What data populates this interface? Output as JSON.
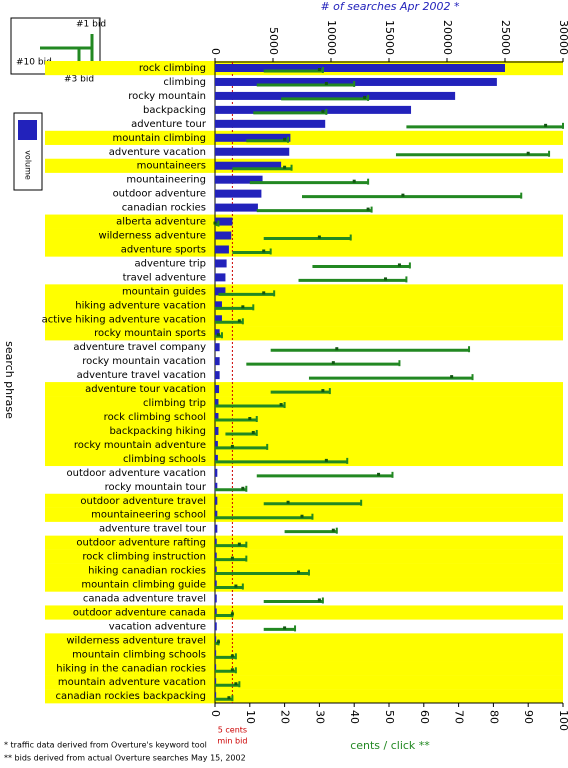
{
  "chart_data": {
    "type": "bar",
    "x_title": "# of searches  Apr 2002 *",
    "x2_title": "cents / click **",
    "y_title": "search phrase",
    "footnotes": [
      "* traffic data derived from Overture's keyword tool",
      "** bids derived from actual Overture searches May 15, 2002"
    ],
    "reference_line": {
      "value": 5,
      "label": "5 cents",
      "sublabel": "min bid",
      "color": "#cc0000"
    },
    "highlight_color": "#ffff00",
    "categories": [
      "rock climbing",
      "climbing",
      "rocky mountain",
      "backpacking",
      "adventure tour",
      "mountain climbing",
      "adventure vacation",
      "mountaineers",
      "mountaineering",
      "outdoor adventure",
      "canadian rockies",
      "alberta adventure",
      "wilderness adventure",
      "adventure sports",
      "adventure trip",
      "travel adventure",
      "mountain guides",
      "hiking adventure vacation",
      "active hiking adventure vacation",
      "rocky mountain sports",
      "adventure travel company",
      "rocky mountain vacation",
      "adventure travel vacation",
      "adventure tour vacation",
      "climbing trip",
      "rock climbing school",
      "backpacking hiking",
      "rocky mountain adventure",
      "climbing schools",
      "outdoor adventure vacation",
      "rocky mountain tour",
      "outdoor adventure travel",
      "mountaineering school",
      "adventure travel tour",
      "outdoor adventure rafting",
      "rock climbing instruction",
      "hiking canadian rockies",
      "mountain climbing guide",
      "canada adventure travel",
      "outdoor adventure canada",
      "vacation adventure",
      "wilderness adventure travel",
      "mountain climbing schools",
      "hiking in the canadian rockies",
      "mountain adventure vacation",
      "canadian rockies backpacking"
    ],
    "highlighted": [
      true,
      false,
      false,
      false,
      false,
      true,
      false,
      true,
      false,
      false,
      false,
      true,
      true,
      true,
      false,
      false,
      true,
      true,
      true,
      true,
      false,
      false,
      false,
      true,
      true,
      true,
      true,
      true,
      true,
      false,
      false,
      true,
      true,
      false,
      true,
      true,
      true,
      true,
      false,
      true,
      false,
      true,
      true,
      true,
      true,
      true
    ],
    "series": [
      {
        "name": "volume",
        "color": "#2222bb",
        "values": [
          25000,
          24300,
          20700,
          16900,
          9500,
          6500,
          6400,
          5700,
          4100,
          4000,
          3700,
          1500,
          1400,
          1200,
          1000,
          900,
          900,
          600,
          600,
          400,
          400,
          400,
          400,
          350,
          300,
          300,
          300,
          250,
          250,
          200,
          200,
          200,
          200,
          200,
          150,
          150,
          150,
          150,
          150,
          150,
          150,
          100,
          100,
          100,
          100,
          100
        ]
      },
      {
        "name": "#10 bid",
        "axis": "x2",
        "color": "#228822",
        "values": [
          14,
          12,
          19,
          11,
          55,
          9,
          52,
          5,
          10,
          25,
          12,
          0,
          14,
          5,
          28,
          24,
          1,
          0,
          0,
          0,
          16,
          9,
          27,
          16,
          0,
          0,
          3,
          0,
          0,
          12,
          0,
          14,
          0,
          20,
          0,
          0,
          0,
          0,
          14,
          0,
          14,
          0,
          0,
          0,
          0,
          0
        ]
      },
      {
        "name": "#3 bid",
        "axis": "x2",
        "color": "#228822",
        "values": [
          30,
          32,
          43,
          31,
          95,
          20,
          90,
          20,
          40,
          54,
          44,
          0,
          30,
          14,
          53,
          49,
          14,
          8,
          7,
          1,
          35,
          34,
          68,
          31,
          19,
          10,
          11,
          5,
          32,
          47,
          8,
          21,
          25,
          34,
          7,
          5,
          24,
          6,
          30,
          5,
          20,
          1,
          5,
          5,
          6,
          4
        ]
      },
      {
        "name": "#1 bid",
        "axis": "x2",
        "color": "#228822",
        "values": [
          31,
          40,
          44,
          32,
          100,
          21,
          96,
          22,
          44,
          88,
          45,
          1,
          39,
          16,
          56,
          55,
          17,
          11,
          8,
          2,
          73,
          53,
          74,
          33,
          20,
          12,
          12,
          15,
          38,
          51,
          9,
          42,
          28,
          35,
          9,
          9,
          27,
          8,
          31,
          5,
          23,
          1,
          6,
          6,
          7,
          5
        ]
      }
    ],
    "xlim": [
      0,
      30000
    ],
    "xticks": [
      0,
      5000,
      10000,
      15000,
      20000,
      25000,
      30000
    ],
    "x2lim": [
      0,
      100
    ],
    "x2ticks": [
      0,
      10,
      20,
      30,
      40,
      50,
      60,
      70,
      80,
      90,
      100
    ]
  }
}
